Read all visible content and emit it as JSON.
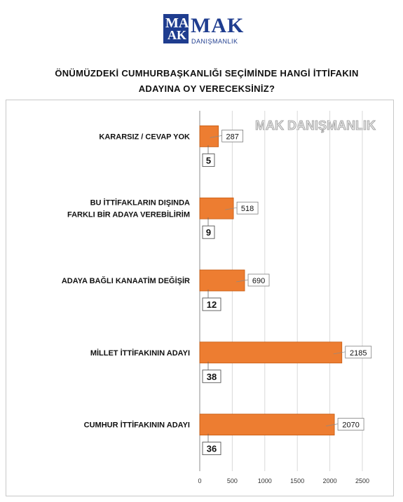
{
  "brand": {
    "logo_letters_top": "MA",
    "logo_letters_bottom": "AK",
    "name": "MAK",
    "subtitle": "DANIŞMANLIK",
    "color": "#1f3d8f"
  },
  "chart_data": {
    "type": "bar",
    "orientation": "horizontal",
    "title": "ÖNÜMÜZDEKİ CUMHURBAŞKANLIĞI SEÇİMİNDE HANGİ İTTİFAKIN ADAYINA OY VERECEKSİNİZ?",
    "title_lines": [
      "ÖNÜMÜZDEKİ CUMHURBAŞKANLIĞI SEÇİMİNDE HANGİ İTTİFAKIN",
      "ADAYINA OY VERECEKSİNİZ?"
    ],
    "watermark": "MAK DANIŞMANLIK",
    "categories": [
      "KARARSIZ / CEVAP YOK",
      "BU İTTİFAKLARIN DIŞINDA FARKLI BİR ADAYA VEREBİLİRİM",
      "ADAYA BAĞLI KANAATİM DEĞİŞİR",
      "MİLLET İTTİFAKININ ADAYI",
      "CUMHUR İTTİFAKININ ADAYI"
    ],
    "category_lines": [
      [
        "KARARSIZ / CEVAP YOK"
      ],
      [
        "BU İTTİFAKLARIN DIŞINDA",
        "FARKLI BİR ADAYA VEREBİLİRİM"
      ],
      [
        "ADAYA BAĞLI KANAATİM DEĞİŞİR"
      ],
      [
        "MİLLET İTTİFAKININ ADAYI"
      ],
      [
        "CUMHUR İTTİFAKININ ADAYI"
      ]
    ],
    "values": [
      287,
      518,
      690,
      2185,
      2070
    ],
    "value_labels": [
      "287",
      "518",
      "690",
      "2185",
      "2070"
    ],
    "percent_labels": [
      "5",
      "9",
      "12",
      "38",
      "36"
    ],
    "xlim": [
      0,
      2500
    ],
    "xticks": [
      "0",
      "500",
      "1000",
      "1500",
      "2000",
      "2500"
    ],
    "xtick_values": [
      0,
      500,
      1000,
      1500,
      2000,
      2500
    ],
    "grid": true,
    "bar_color": "#ed7d31",
    "bar_edge_color": "#c55a11",
    "xlabel": "",
    "ylabel": ""
  }
}
